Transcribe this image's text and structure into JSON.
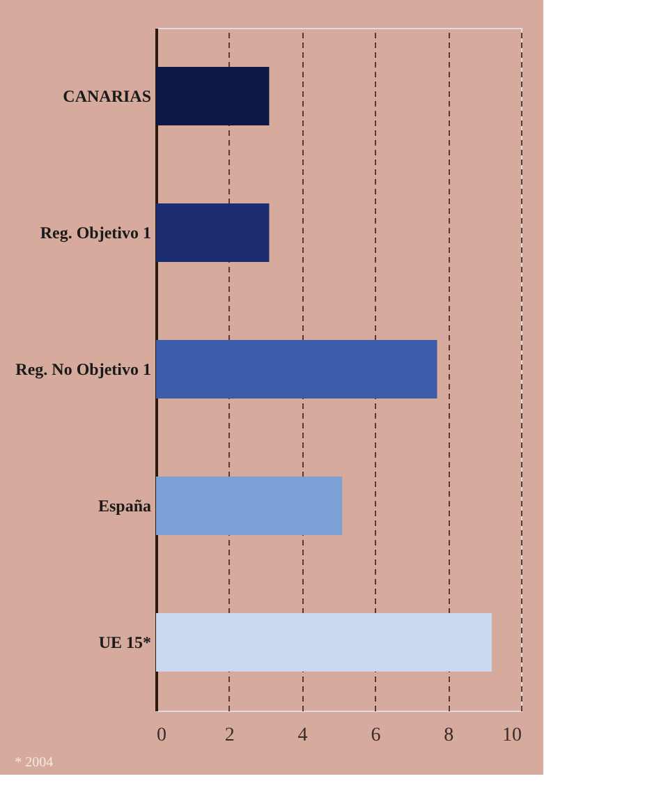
{
  "chart_data": {
    "type": "bar",
    "orientation": "horizontal",
    "categories": [
      "CANARIAS",
      "Reg. Objetivo 1",
      "Reg. No Objetivo 1",
      "España",
      "UE 15*"
    ],
    "values": [
      3.1,
      3.1,
      7.7,
      5.1,
      9.2
    ],
    "colors": [
      "#0f1747",
      "#1c2d72",
      "#3b5ca8",
      "#7c9fd6",
      "#cbd8ef"
    ],
    "xlim": [
      0,
      10
    ],
    "xticks": [
      0,
      2,
      4,
      6,
      8,
      10
    ],
    "grid": "x",
    "annotations": [
      "* 2004"
    ]
  }
}
